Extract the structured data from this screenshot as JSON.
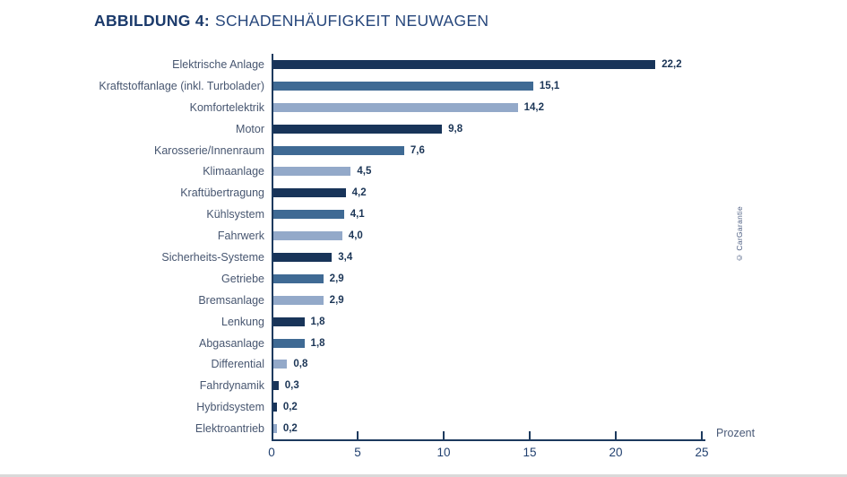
{
  "title": {
    "prefix": "ABBILDUNG 4:",
    "text": "SCHADENHÄUFIGKEIT NEUWAGEN"
  },
  "watermark": "© CarGarantie",
  "chart_data": {
    "type": "bar",
    "orientation": "horizontal",
    "title": "ABBILDUNG 4: SCHADENHÄUFIGKEIT NEUWAGEN",
    "categories": [
      "Elektrische Anlage",
      "Kraftstoffanlage (inkl. Turbolader)",
      "Komfortelektrik",
      "Motor",
      "Karosserie/Innenraum",
      "Klimaanlage",
      "Kraftübertragung",
      "Kühlsystem",
      "Fahrwerk",
      "Sicherheits-Systeme",
      "Getriebe",
      "Bremsanlage",
      "Lenkung",
      "Abgasanlage",
      "Differential",
      "Fahrdynamik",
      "Hybridsystem",
      "Elektroantrieb"
    ],
    "values": [
      22.2,
      15.1,
      14.2,
      9.8,
      7.6,
      4.5,
      4.2,
      4.1,
      4.0,
      3.4,
      2.9,
      2.9,
      1.8,
      1.8,
      0.8,
      0.3,
      0.2,
      0.2
    ],
    "value_labels": [
      "22,2",
      "15,1",
      "14,2",
      "9,8",
      "7,6",
      "4,5",
      "4,2",
      "4,1",
      "4,0",
      "3,4",
      "2,9",
      "2,9",
      "1,8",
      "1,8",
      "0,8",
      "0,3",
      "0,2",
      "0,2"
    ],
    "xlabel": "Prozent",
    "xlim": [
      0,
      25
    ],
    "x_ticks": [
      0,
      5,
      10,
      15,
      20,
      25
    ],
    "grid": false,
    "legend": false,
    "palette": {
      "dark": "#183459",
      "medium": "#3f6a94",
      "light": "#93a9c9"
    },
    "bar_color_keys": [
      "dark",
      "medium",
      "light",
      "dark",
      "medium",
      "light",
      "dark",
      "medium",
      "light",
      "dark",
      "medium",
      "light",
      "dark",
      "medium",
      "light",
      "dark",
      "dark",
      "light"
    ],
    "axis_color": "#1d3a5e"
  }
}
